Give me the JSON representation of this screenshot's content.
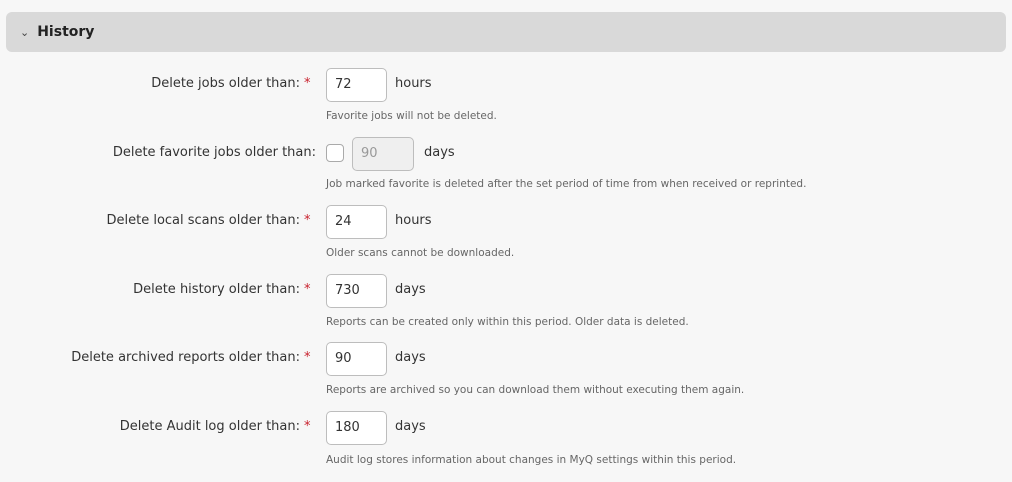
{
  "section": {
    "title": "History",
    "expanded": true
  },
  "rows": [
    {
      "label": "Delete jobs older than:",
      "required": true,
      "value": "72",
      "unit": "hours",
      "hint": "Favorite jobs will not be deleted."
    },
    {
      "label": "Delete favorite jobs older than:",
      "required": false,
      "checked": false,
      "value": "90",
      "unit": "days",
      "hint": "Job marked favorite is deleted after the set period of time from when received or reprinted."
    },
    {
      "label": "Delete local scans older than:",
      "required": true,
      "value": "24",
      "unit": "hours",
      "hint": "Older scans cannot be downloaded."
    },
    {
      "label": "Delete history older than:",
      "required": true,
      "value": "730",
      "unit": "days",
      "hint": "Reports can be created only within this period. Older data is deleted."
    },
    {
      "label": "Delete archived reports older than:",
      "required": true,
      "value": "90",
      "unit": "days",
      "hint": "Reports are archived so you can download them without executing them again."
    },
    {
      "label": "Delete Audit log older than:",
      "required": true,
      "value": "180",
      "unit": "days",
      "hint": "Audit log stores information about changes in MyQ settings within this period."
    }
  ],
  "required_marker": "*",
  "colors": {
    "header_bg": "#d9d9d9",
    "required": "#c8202c"
  }
}
